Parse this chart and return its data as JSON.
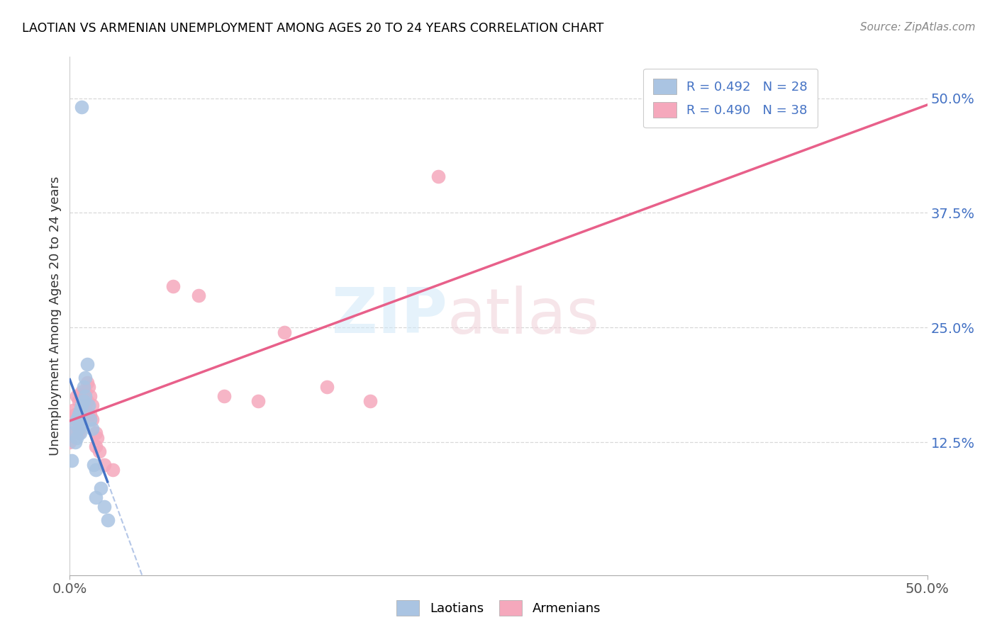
{
  "title": "LAOTIAN VS ARMENIAN UNEMPLOYMENT AMONG AGES 20 TO 24 YEARS CORRELATION CHART",
  "source": "Source: ZipAtlas.com",
  "ylabel": "Unemployment Among Ages 20 to 24 years",
  "xlim": [
    0.0,
    0.5
  ],
  "ylim": [
    -0.02,
    0.545
  ],
  "xticks": [
    0.0,
    0.5
  ],
  "xticklabels": [
    "0.0%",
    "50.0%"
  ],
  "ytick_positions": [
    0.125,
    0.25,
    0.375,
    0.5
  ],
  "yticklabels_right": [
    "12.5%",
    "25.0%",
    "37.5%",
    "50.0%"
  ],
  "watermark_zip": "ZIP",
  "watermark_atlas": "atlas",
  "legend_r_laotian": "R = 0.492",
  "legend_n_laotian": "N = 28",
  "legend_r_armenian": "R = 0.490",
  "legend_n_armenian": "N = 38",
  "laotian_color": "#aac4e2",
  "armenian_color": "#f5a8bc",
  "laotian_line_color": "#4472c4",
  "armenian_line_color": "#e8608a",
  "laotian_x": [
    0.001,
    0.001,
    0.003,
    0.003,
    0.004,
    0.004,
    0.005,
    0.005,
    0.006,
    0.006,
    0.006,
    0.007,
    0.007,
    0.008,
    0.008,
    0.009,
    0.009,
    0.01,
    0.011,
    0.012,
    0.013,
    0.014,
    0.015,
    0.015,
    0.018,
    0.02,
    0.022,
    0.007
  ],
  "laotian_y": [
    0.135,
    0.105,
    0.145,
    0.125,
    0.15,
    0.13,
    0.155,
    0.14,
    0.16,
    0.15,
    0.135,
    0.165,
    0.145,
    0.185,
    0.17,
    0.195,
    0.175,
    0.21,
    0.165,
    0.15,
    0.14,
    0.1,
    0.095,
    0.065,
    0.075,
    0.055,
    0.04,
    0.49
  ],
  "armenian_x": [
    0.0,
    0.0,
    0.002,
    0.003,
    0.003,
    0.004,
    0.004,
    0.005,
    0.005,
    0.005,
    0.006,
    0.007,
    0.007,
    0.008,
    0.008,
    0.009,
    0.009,
    0.01,
    0.01,
    0.011,
    0.012,
    0.012,
    0.013,
    0.013,
    0.015,
    0.015,
    0.016,
    0.017,
    0.02,
    0.025,
    0.06,
    0.075,
    0.09,
    0.11,
    0.125,
    0.15,
    0.175,
    0.215
  ],
  "armenian_y": [
    0.135,
    0.125,
    0.16,
    0.155,
    0.145,
    0.175,
    0.155,
    0.17,
    0.155,
    0.135,
    0.155,
    0.18,
    0.16,
    0.175,
    0.16,
    0.18,
    0.165,
    0.19,
    0.17,
    0.185,
    0.175,
    0.155,
    0.165,
    0.15,
    0.135,
    0.12,
    0.13,
    0.115,
    0.1,
    0.095,
    0.295,
    0.285,
    0.175,
    0.17,
    0.245,
    0.185,
    0.17,
    0.415
  ],
  "background_color": "#ffffff",
  "grid_color": "#d8d8d8"
}
